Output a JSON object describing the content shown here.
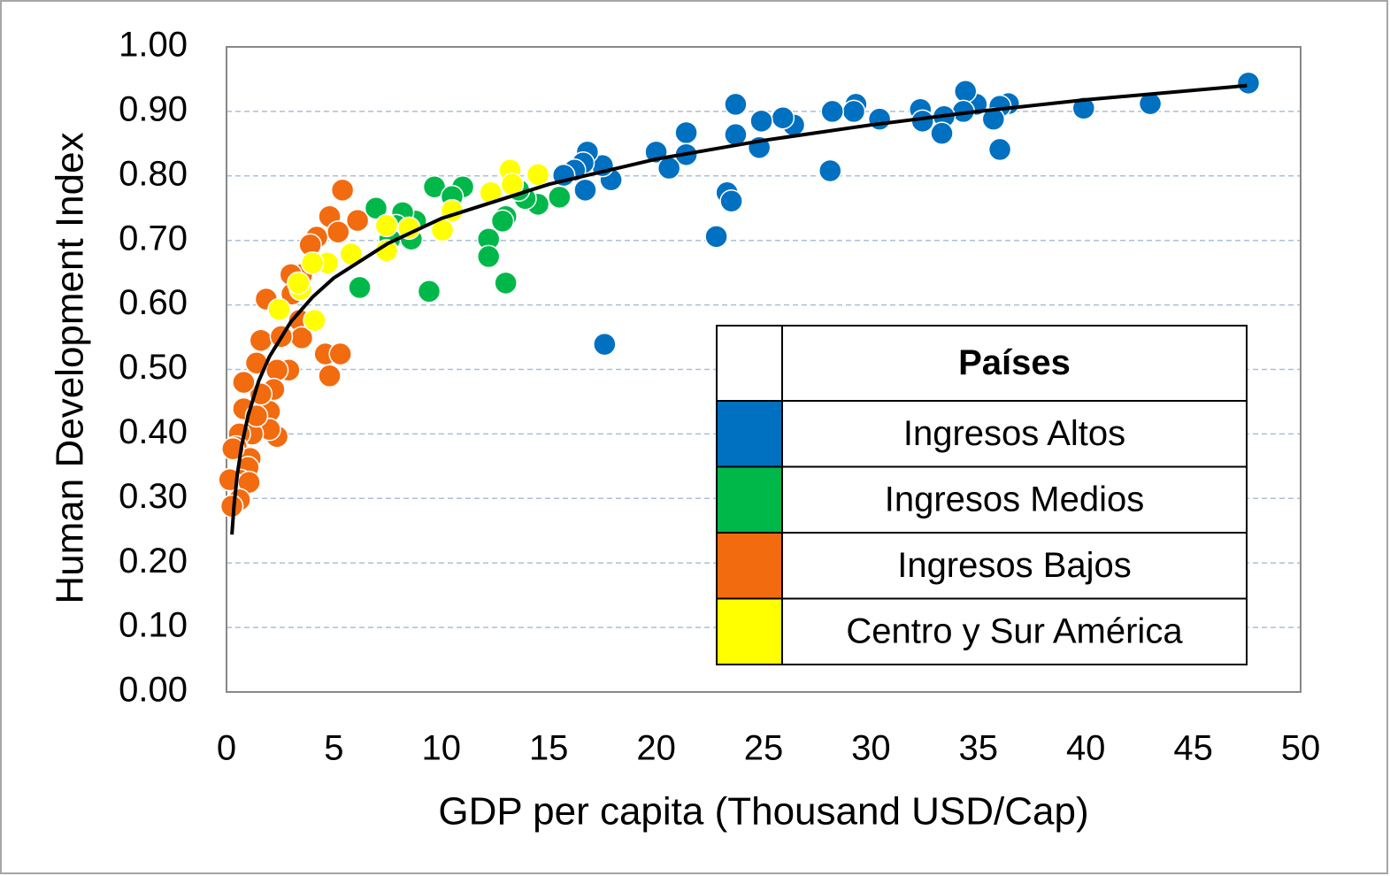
{
  "chart_data": {
    "type": "scatter",
    "xlabel": "GDP per capita (Thousand USD/Cap)",
    "ylabel": "Human Development Index",
    "xlim": [
      0,
      50
    ],
    "xticks": [
      0,
      5,
      10,
      15,
      20,
      25,
      30,
      35,
      40,
      45,
      50
    ],
    "ylim": [
      0,
      1
    ],
    "yticks": [
      {
        "value": 0,
        "label": "0.00"
      },
      {
        "value": 0.1,
        "label": "0.10"
      },
      {
        "value": 0.2,
        "label": "0.20"
      },
      {
        "value": 0.3,
        "label": "0.30"
      },
      {
        "value": 0.4,
        "label": "0.40"
      },
      {
        "value": 0.5,
        "label": "0.50"
      },
      {
        "value": 0.6,
        "label": "0.60"
      },
      {
        "value": 0.7,
        "label": "0.70"
      },
      {
        "value": 0.8,
        "label": "0.80"
      },
      {
        "value": 0.9,
        "label": "0.90"
      },
      {
        "value": 1,
        "label": "1.00"
      }
    ],
    "grid": true,
    "legend_title": "Países",
    "legend_position": "lower-right",
    "series": [
      {
        "name": "Ingresos Altos",
        "color": "#0070c0",
        "x": [
          47.57,
          43.0,
          39.9,
          36.4,
          36.0,
          34.9,
          34.4,
          34.3,
          35.7,
          36.0,
          33.4,
          33.3,
          32.3,
          32.4,
          30.4,
          29.3,
          29.2,
          28.2,
          28.1,
          26.4,
          25.9,
          24.9,
          24.8,
          23.7,
          23.7,
          23.3,
          23.5,
          22.8,
          21.4,
          21.4,
          20.0,
          20.6,
          17.9,
          17.5,
          16.8,
          16.6,
          16.2,
          15.7,
          16.7,
          17.6
        ],
        "values": [
          0.944,
          0.912,
          0.905,
          0.912,
          0.908,
          0.911,
          0.931,
          0.9,
          0.888,
          0.841,
          0.892,
          0.866,
          0.903,
          0.885,
          0.888,
          0.911,
          0.9,
          0.9,
          0.808,
          0.879,
          0.89,
          0.885,
          0.844,
          0.911,
          0.864,
          0.774,
          0.761,
          0.706,
          0.867,
          0.833,
          0.837,
          0.812,
          0.794,
          0.816,
          0.837,
          0.82,
          0.809,
          0.801,
          0.778,
          0.539
        ]
      },
      {
        "name": "Ingresos Medios",
        "color": "#00b84a",
        "x": [
          15.5,
          14.5,
          13.9,
          13.6,
          13.0,
          12.85,
          13.0,
          12.2,
          12.2,
          11.0,
          9.68,
          9.43,
          10.5,
          8.8,
          8.2,
          7.9,
          7.6,
          6.96,
          6.2,
          8.6
        ],
        "values": [
          0.767,
          0.756,
          0.765,
          0.778,
          0.737,
          0.73,
          0.634,
          0.702,
          0.675,
          0.783,
          0.783,
          0.621,
          0.768,
          0.73,
          0.743,
          0.723,
          0.702,
          0.75,
          0.627,
          0.702
        ]
      },
      {
        "name": "Ingresos Bajos",
        "color": "#f26b0f",
        "x": [
          5.4,
          4.8,
          6.1,
          5.2,
          4.2,
          3.9,
          3.95,
          3.5,
          3.0,
          3.05,
          3.4,
          3.5,
          4.6,
          5.3,
          4.8,
          1.85,
          2.9,
          2.35,
          1.6,
          1.4,
          2.2,
          2.0,
          2.35,
          2.0,
          1.6,
          0.8,
          0.8,
          1.2,
          0.6,
          0.45,
          1.1,
          0.3,
          1.0,
          0.65,
          0.15,
          1.05,
          0.6,
          0.25,
          1.4,
          2.55
        ],
        "values": [
          0.778,
          0.737,
          0.731,
          0.713,
          0.705,
          0.693,
          0.664,
          0.647,
          0.647,
          0.617,
          0.576,
          0.549,
          0.524,
          0.524,
          0.49,
          0.609,
          0.499,
          0.499,
          0.545,
          0.51,
          0.469,
          0.435,
          0.396,
          0.407,
          0.462,
          0.48,
          0.439,
          0.4,
          0.4,
          0.38,
          0.362,
          0.377,
          0.348,
          0.328,
          0.329,
          0.325,
          0.298,
          0.288,
          0.428,
          0.551
        ]
      },
      {
        "name": "Centro y Sur América",
        "color": "#ffff00",
        "x": [
          14.5,
          13.2,
          13.3,
          12.3,
          10.5,
          10.05,
          8.5,
          7.45,
          7.45,
          5.8,
          4.7,
          4.0,
          3.45,
          3.35,
          4.1,
          2.45
        ],
        "values": [
          0.802,
          0.809,
          0.787,
          0.774,
          0.746,
          0.716,
          0.719,
          0.723,
          0.684,
          0.679,
          0.665,
          0.665,
          0.624,
          0.634,
          0.576,
          0.593
        ]
      }
    ],
    "trendline": {
      "color": "#000000",
      "x": [
        0.25,
        0.35,
        0.5,
        0.7,
        1,
        1.5,
        2,
        3,
        4,
        5,
        7.5,
        10,
        15,
        20,
        25,
        30,
        35,
        40,
        47.5
      ],
      "values": [
        0.244,
        0.289,
        0.336,
        0.381,
        0.428,
        0.482,
        0.52,
        0.574,
        0.612,
        0.642,
        0.695,
        0.734,
        0.787,
        0.826,
        0.855,
        0.879,
        0.9,
        0.918,
        0.94
      ]
    }
  }
}
